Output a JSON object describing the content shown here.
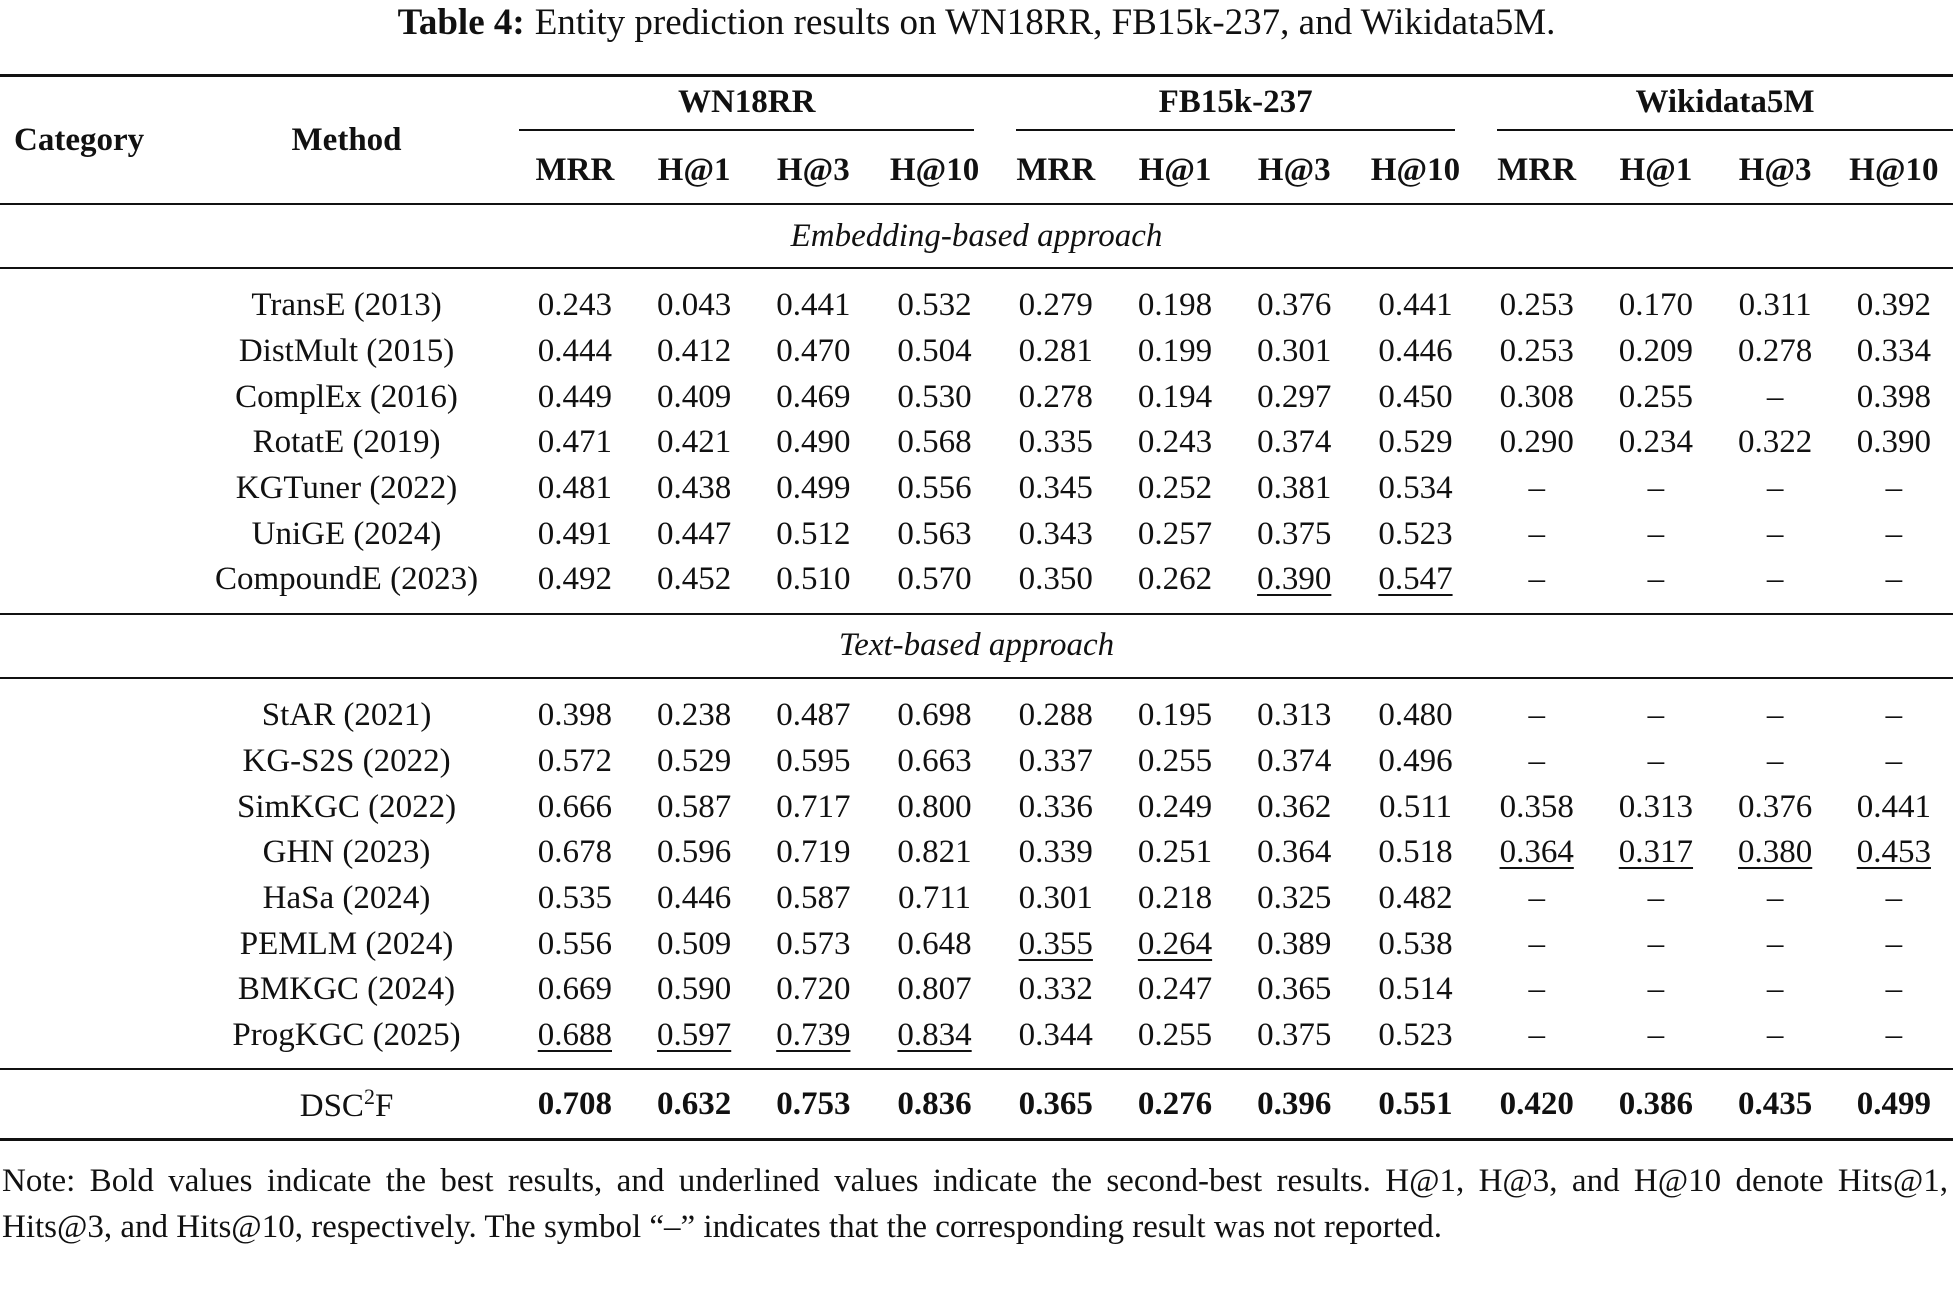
{
  "caption": {
    "label": "Table 4:",
    "text": "Entity prediction results on WN18RR, FB15k-237, and Wikidata5M."
  },
  "header": {
    "category": "Category",
    "method": "Method",
    "datasets": [
      "WN18RR",
      "FB15k-237",
      "Wikidata5M"
    ],
    "metrics": [
      "MRR",
      "H@1",
      "H@3",
      "H@10",
      "MRR",
      "H@1",
      "H@3",
      "H@10",
      "MRR",
      "H@1",
      "H@3",
      "H@10"
    ]
  },
  "sections": [
    {
      "title": "Embedding-based approach",
      "rows": [
        {
          "method": "TransE (2013)",
          "values": [
            "0.243",
            "0.043",
            "0.441",
            "0.532",
            "0.279",
            "0.198",
            "0.376",
            "0.441",
            "0.253",
            "0.170",
            "0.311",
            "0.392"
          ],
          "underline": []
        },
        {
          "method": "DistMult (2015)",
          "values": [
            "0.444",
            "0.412",
            "0.470",
            "0.504",
            "0.281",
            "0.199",
            "0.301",
            "0.446",
            "0.253",
            "0.209",
            "0.278",
            "0.334"
          ],
          "underline": []
        },
        {
          "method": "ComplEx (2016)",
          "values": [
            "0.449",
            "0.409",
            "0.469",
            "0.530",
            "0.278",
            "0.194",
            "0.297",
            "0.450",
            "0.308",
            "0.255",
            "–",
            "0.398"
          ],
          "underline": []
        },
        {
          "method": "RotatE (2019)",
          "values": [
            "0.471",
            "0.421",
            "0.490",
            "0.568",
            "0.335",
            "0.243",
            "0.374",
            "0.529",
            "0.290",
            "0.234",
            "0.322",
            "0.390"
          ],
          "underline": []
        },
        {
          "method": "KGTuner (2022)",
          "values": [
            "0.481",
            "0.438",
            "0.499",
            "0.556",
            "0.345",
            "0.252",
            "0.381",
            "0.534",
            "–",
            "–",
            "–",
            "–"
          ],
          "underline": []
        },
        {
          "method": "UniGE (2024)",
          "values": [
            "0.491",
            "0.447",
            "0.512",
            "0.563",
            "0.343",
            "0.257",
            "0.375",
            "0.523",
            "–",
            "–",
            "–",
            "–"
          ],
          "underline": []
        },
        {
          "method": "CompoundE (2023)",
          "values": [
            "0.492",
            "0.452",
            "0.510",
            "0.570",
            "0.350",
            "0.262",
            "0.390",
            "0.547",
            "–",
            "–",
            "–",
            "–"
          ],
          "underline": [
            6,
            7
          ]
        }
      ]
    },
    {
      "title": "Text-based approach",
      "rows": [
        {
          "method": "StAR (2021)",
          "values": [
            "0.398",
            "0.238",
            "0.487",
            "0.698",
            "0.288",
            "0.195",
            "0.313",
            "0.480",
            "–",
            "–",
            "–",
            "–"
          ],
          "underline": []
        },
        {
          "method": "KG-S2S (2022)",
          "values": [
            "0.572",
            "0.529",
            "0.595",
            "0.663",
            "0.337",
            "0.255",
            "0.374",
            "0.496",
            "–",
            "–",
            "–",
            "–"
          ],
          "underline": []
        },
        {
          "method": "SimKGC (2022)",
          "values": [
            "0.666",
            "0.587",
            "0.717",
            "0.800",
            "0.336",
            "0.249",
            "0.362",
            "0.511",
            "0.358",
            "0.313",
            "0.376",
            "0.441"
          ],
          "underline": []
        },
        {
          "method": "GHN (2023)",
          "values": [
            "0.678",
            "0.596",
            "0.719",
            "0.821",
            "0.339",
            "0.251",
            "0.364",
            "0.518",
            "0.364",
            "0.317",
            "0.380",
            "0.453"
          ],
          "underline": [
            8,
            9,
            10,
            11
          ]
        },
        {
          "method": "HaSa (2024)",
          "values": [
            "0.535",
            "0.446",
            "0.587",
            "0.711",
            "0.301",
            "0.218",
            "0.325",
            "0.482",
            "–",
            "–",
            "–",
            "–"
          ],
          "underline": []
        },
        {
          "method": "PEMLM (2024)",
          "values": [
            "0.556",
            "0.509",
            "0.573",
            "0.648",
            "0.355",
            "0.264",
            "0.389",
            "0.538",
            "–",
            "–",
            "–",
            "–"
          ],
          "underline": [
            4,
            5
          ]
        },
        {
          "method": "BMKGC (2024)",
          "values": [
            "0.669",
            "0.590",
            "0.720",
            "0.807",
            "0.332",
            "0.247",
            "0.365",
            "0.514",
            "–",
            "–",
            "–",
            "–"
          ],
          "underline": []
        },
        {
          "method": "ProgKGC (2025)",
          "values": [
            "0.688",
            "0.597",
            "0.739",
            "0.834",
            "0.344",
            "0.255",
            "0.375",
            "0.523",
            "–",
            "–",
            "–",
            "–"
          ],
          "underline": [
            0,
            1,
            2,
            3
          ]
        }
      ]
    }
  ],
  "ours": {
    "method_base": "DSC",
    "method_sup": "2",
    "method_tail": "F",
    "values": [
      "0.708",
      "0.632",
      "0.753",
      "0.836",
      "0.365",
      "0.276",
      "0.396",
      "0.551",
      "0.420",
      "0.386",
      "0.435",
      "0.499"
    ]
  },
  "note": "Note: Bold values indicate the best results, and underlined values indicate the second-best results. H@1, H@3, and H@10 denote Hits@1, Hits@3, and Hits@10, respectively. The symbol “–” indicates that the corresponding result was not reported."
}
